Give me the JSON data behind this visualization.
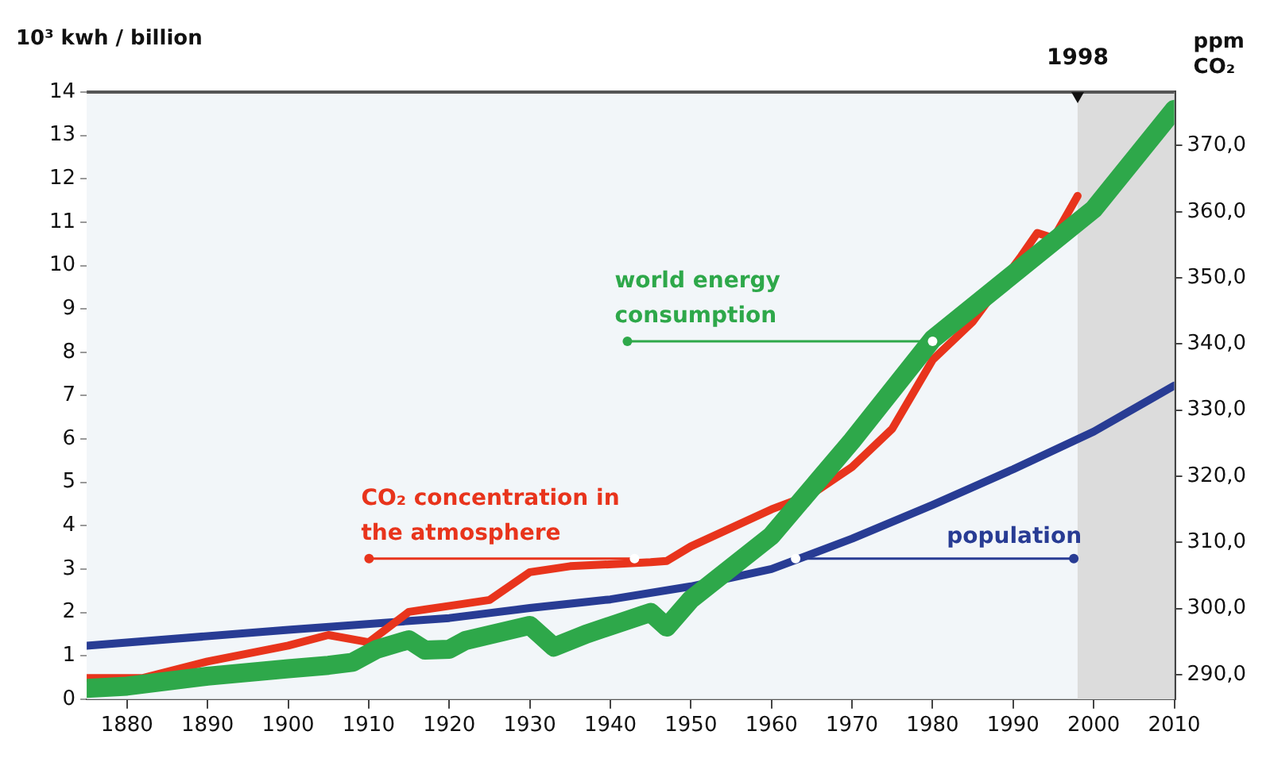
{
  "chart_data": {
    "type": "line",
    "ylabel": "10³ kwh / billion",
    "y2label": "ppm CO₂",
    "xlim": [
      1875,
      2010
    ],
    "xticks": [
      1880,
      1890,
      1900,
      1910,
      1920,
      1930,
      1940,
      1950,
      1960,
      1970,
      1980,
      1990,
      2000,
      2010
    ],
    "ylim": [
      0,
      14
    ],
    "yticks": [
      0,
      1,
      2,
      3,
      4,
      5,
      6,
      7,
      8,
      9,
      10,
      11,
      12,
      13,
      14
    ],
    "y2lim": [
      286.3,
      378.1
    ],
    "y2ticks": [
      {
        "value": 290,
        "label": "290,0"
      },
      {
        "value": 300,
        "label": "300,0"
      },
      {
        "value": 310,
        "label": "310,0"
      },
      {
        "value": 320,
        "label": "320,0"
      },
      {
        "value": 330,
        "label": "330,0"
      },
      {
        "value": 340,
        "label": "340,0"
      },
      {
        "value": 350,
        "label": "350,0"
      },
      {
        "value": 360,
        "label": "360,0"
      },
      {
        "value": 370,
        "label": "370,0"
      }
    ],
    "series": [
      {
        "color": "#2ea84a",
        "x": [
          1875,
          1880,
          1890,
          1900,
          1905,
          1908,
          1911,
          1915,
          1917,
          1920,
          1922,
          1930,
          1933,
          1937,
          1945,
          1947,
          1950,
          1960,
          1970,
          1980,
          1990,
          2000,
          2010
        ],
        "values": [
          0.25,
          0.3,
          0.53,
          0.7,
          0.78,
          0.85,
          1.15,
          1.37,
          1.13,
          1.15,
          1.35,
          1.7,
          1.2,
          1.5,
          2.0,
          1.66,
          2.3,
          3.77,
          5.96,
          8.3,
          9.8,
          11.3,
          13.6
        ]
      },
      {
        "color": "#e8341c",
        "axis": "y2",
        "x": [
          1875,
          1882,
          1890,
          1900,
          1905,
          1910,
          1915,
          1920,
          1925,
          1930,
          1935,
          1945,
          1947,
          1950,
          1960,
          1965,
          1970,
          1975,
          1980,
          1985,
          1991,
          1993,
          1995,
          1998
        ],
        "values": [
          289.5,
          289.5,
          292,
          294.4,
          296,
          294.9,
          299.5,
          300.4,
          301.3,
          305.5,
          306.4,
          307,
          307.2,
          309.4,
          315,
          317.3,
          321.4,
          327.2,
          337.6,
          343.4,
          353.3,
          356.8,
          356,
          362.4
        ]
      },
      {
        "color": "#283c94",
        "x": [
          1875,
          1900,
          1920,
          1930,
          1940,
          1950,
          1960,
          1970,
          1980,
          1990,
          2000,
          2010
        ],
        "values": [
          1.23,
          1.6,
          1.87,
          2.1,
          2.3,
          2.6,
          3.0,
          3.7,
          4.48,
          5.3,
          6.17,
          7.23
        ]
      }
    ],
    "annotations": [
      {
        "text": "world energy consumption",
        "x": 1980,
        "y": 8.25
      },
      {
        "text": "CO₂ concentration in the atmosphere",
        "x": 1943,
        "y": 3.24
      },
      {
        "text": "population",
        "x": 1963,
        "y": 3.24
      }
    ],
    "bands": [
      {
        "axis": "x",
        "from": 1998,
        "to": 2010,
        "label": "1998",
        "color": "#dcdcdc"
      }
    ],
    "grid": false,
    "legend": false,
    "marker": "none",
    "line_style": "solid"
  }
}
